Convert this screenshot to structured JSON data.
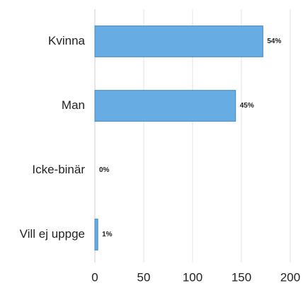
{
  "chart_data": {
    "type": "hbar",
    "categories": [
      "Kvinna",
      "Man",
      "Icke-binär",
      "Vill ej uppge"
    ],
    "values": [
      172,
      144,
      0,
      3
    ],
    "value_labels": [
      "54%",
      "45%",
      "0%",
      "1%"
    ],
    "color": "#67ade4",
    "edge_color": "#3d87c8",
    "xlim": [
      0,
      200
    ],
    "xticks": [
      0,
      50,
      100,
      150,
      200
    ],
    "grid": true
  }
}
